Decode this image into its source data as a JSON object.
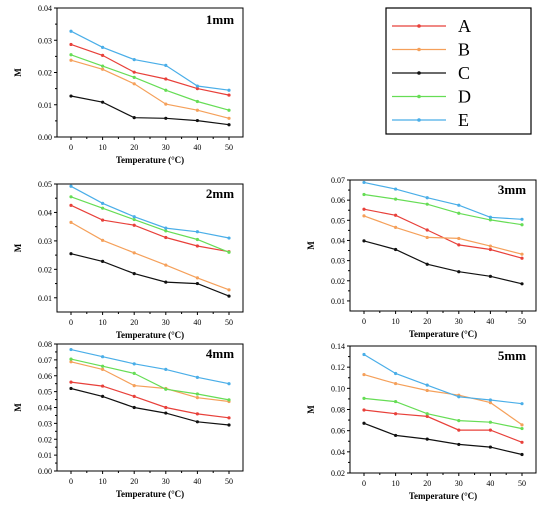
{
  "colors": {
    "A": "#e8403a",
    "B": "#f5a05a",
    "C": "#111111",
    "D": "#66dd55",
    "E": "#4aaee8"
  },
  "legend": [
    {
      "series": "A",
      "label": "A"
    },
    {
      "series": "B",
      "label": "B"
    },
    {
      "series": "C",
      "label": "C"
    },
    {
      "series": "D",
      "label": "D"
    },
    {
      "series": "E",
      "label": "E"
    }
  ],
  "chart_data": [
    {
      "type": "line",
      "title": "1mm",
      "xlabel": "Temperature (°C)",
      "ylabel": "M",
      "x": [
        0,
        10,
        20,
        30,
        40,
        50
      ],
      "xticks": [
        "0",
        "10",
        "20",
        "30",
        "40",
        "50"
      ],
      "ylim": [
        0.0,
        0.04
      ],
      "yticks": [
        "0.00",
        "0.01",
        "0.02",
        "0.03",
        "0.04"
      ],
      "series": [
        {
          "name": "A",
          "values": [
            0.0287,
            0.0253,
            0.0201,
            0.018,
            0.015,
            0.013
          ]
        },
        {
          "name": "B",
          "values": [
            0.0238,
            0.021,
            0.0165,
            0.0102,
            0.0083,
            0.0058
          ]
        },
        {
          "name": "C",
          "values": [
            0.0127,
            0.0108,
            0.006,
            0.0058,
            0.0051,
            0.0038
          ]
        },
        {
          "name": "D",
          "values": [
            0.0255,
            0.022,
            0.0185,
            0.0145,
            0.011,
            0.0083
          ]
        },
        {
          "name": "E",
          "values": [
            0.0328,
            0.0278,
            0.024,
            0.0222,
            0.0158,
            0.0145
          ]
        }
      ]
    },
    {
      "type": "line",
      "title": "2mm",
      "xlabel": "Temperature (°C)",
      "ylabel": "M",
      "x": [
        0,
        10,
        20,
        30,
        40,
        50
      ],
      "xticks": [
        "0",
        "10",
        "20",
        "30",
        "40",
        "50"
      ],
      "ylim": [
        0.005,
        0.05
      ],
      "yticks": [
        "0.01",
        "0.02",
        "0.03",
        "0.04",
        "0.05"
      ],
      "series": [
        {
          "name": "A",
          "values": [
            0.0425,
            0.0373,
            0.0355,
            0.0312,
            0.0282,
            0.0262
          ]
        },
        {
          "name": "B",
          "values": [
            0.0365,
            0.0302,
            0.0258,
            0.0215,
            0.017,
            0.0128
          ]
        },
        {
          "name": "C",
          "values": [
            0.0255,
            0.0228,
            0.0185,
            0.0155,
            0.015,
            0.0106
          ]
        },
        {
          "name": "D",
          "values": [
            0.0455,
            0.0415,
            0.0375,
            0.0335,
            0.0305,
            0.026
          ]
        },
        {
          "name": "E",
          "values": [
            0.0492,
            0.0432,
            0.0385,
            0.0345,
            0.0332,
            0.031
          ]
        }
      ]
    },
    {
      "type": "line",
      "title": "3mm",
      "xlabel": "Temperature (°C)",
      "ylabel": "M",
      "x": [
        0,
        10,
        20,
        30,
        40,
        50
      ],
      "xticks": [
        "0",
        "10",
        "20",
        "30",
        "40",
        "50"
      ],
      "ylim": [
        0.005,
        0.07
      ],
      "yticks": [
        "0.01",
        "0.02",
        "0.03",
        "0.04",
        "0.05",
        "0.06",
        "0.07"
      ],
      "series": [
        {
          "name": "A",
          "values": [
            0.0555,
            0.0525,
            0.0452,
            0.0378,
            0.0355,
            0.0312
          ]
        },
        {
          "name": "B",
          "values": [
            0.0522,
            0.0465,
            0.0415,
            0.041,
            0.0372,
            0.0332
          ]
        },
        {
          "name": "C",
          "values": [
            0.0398,
            0.0355,
            0.0282,
            0.0245,
            0.0222,
            0.0185
          ]
        },
        {
          "name": "D",
          "values": [
            0.0628,
            0.0605,
            0.058,
            0.0535,
            0.0502,
            0.0478
          ]
        },
        {
          "name": "E",
          "values": [
            0.0688,
            0.0655,
            0.0612,
            0.0575,
            0.0515,
            0.0505
          ]
        }
      ]
    },
    {
      "type": "line",
      "title": "4mm",
      "xlabel": "Temperature (°C)",
      "ylabel": "M",
      "x": [
        0,
        10,
        20,
        30,
        40,
        50
      ],
      "xticks": [
        "0",
        "10",
        "20",
        "30",
        "40",
        "50"
      ],
      "ylim": [
        0.0,
        0.08
      ],
      "yticks": [
        "0.00",
        "0.01",
        "0.02",
        "0.03",
        "0.04",
        "0.05",
        "0.06",
        "0.07",
        "0.08"
      ],
      "series": [
        {
          "name": "A",
          "values": [
            0.056,
            0.0535,
            0.047,
            0.04,
            0.036,
            0.0335
          ]
        },
        {
          "name": "B",
          "values": [
            0.0688,
            0.064,
            0.0538,
            0.052,
            0.0462,
            0.0438
          ]
        },
        {
          "name": "C",
          "values": [
            0.052,
            0.047,
            0.04,
            0.0365,
            0.031,
            0.029
          ]
        },
        {
          "name": "D",
          "values": [
            0.0705,
            0.066,
            0.0615,
            0.0515,
            0.0485,
            0.0448
          ]
        },
        {
          "name": "E",
          "values": [
            0.0765,
            0.072,
            0.0675,
            0.064,
            0.059,
            0.055
          ]
        }
      ]
    },
    {
      "type": "line",
      "title": "5mm",
      "xlabel": "Temperature (°C)",
      "ylabel": "M",
      "x": [
        0,
        10,
        20,
        30,
        40,
        50
      ],
      "xticks": [
        "0",
        "10",
        "20",
        "30",
        "40",
        "50"
      ],
      "ylim": [
        0.02,
        0.14
      ],
      "yticks": [
        "0.02",
        "0.04",
        "0.06",
        "0.08",
        "0.10",
        "0.12",
        "0.14"
      ],
      "series": [
        {
          "name": "A",
          "values": [
            0.0795,
            0.076,
            0.0735,
            0.0605,
            0.0605,
            0.049
          ]
        },
        {
          "name": "B",
          "values": [
            0.113,
            0.1045,
            0.098,
            0.0935,
            0.0865,
            0.0655
          ]
        },
        {
          "name": "C",
          "values": [
            0.067,
            0.0555,
            0.052,
            0.047,
            0.0445,
            0.0375
          ]
        },
        {
          "name": "D",
          "values": [
            0.0905,
            0.0875,
            0.076,
            0.0695,
            0.068,
            0.062
          ]
        },
        {
          "name": "E",
          "values": [
            0.132,
            0.114,
            0.103,
            0.092,
            0.089,
            0.0855
          ]
        }
      ]
    }
  ]
}
